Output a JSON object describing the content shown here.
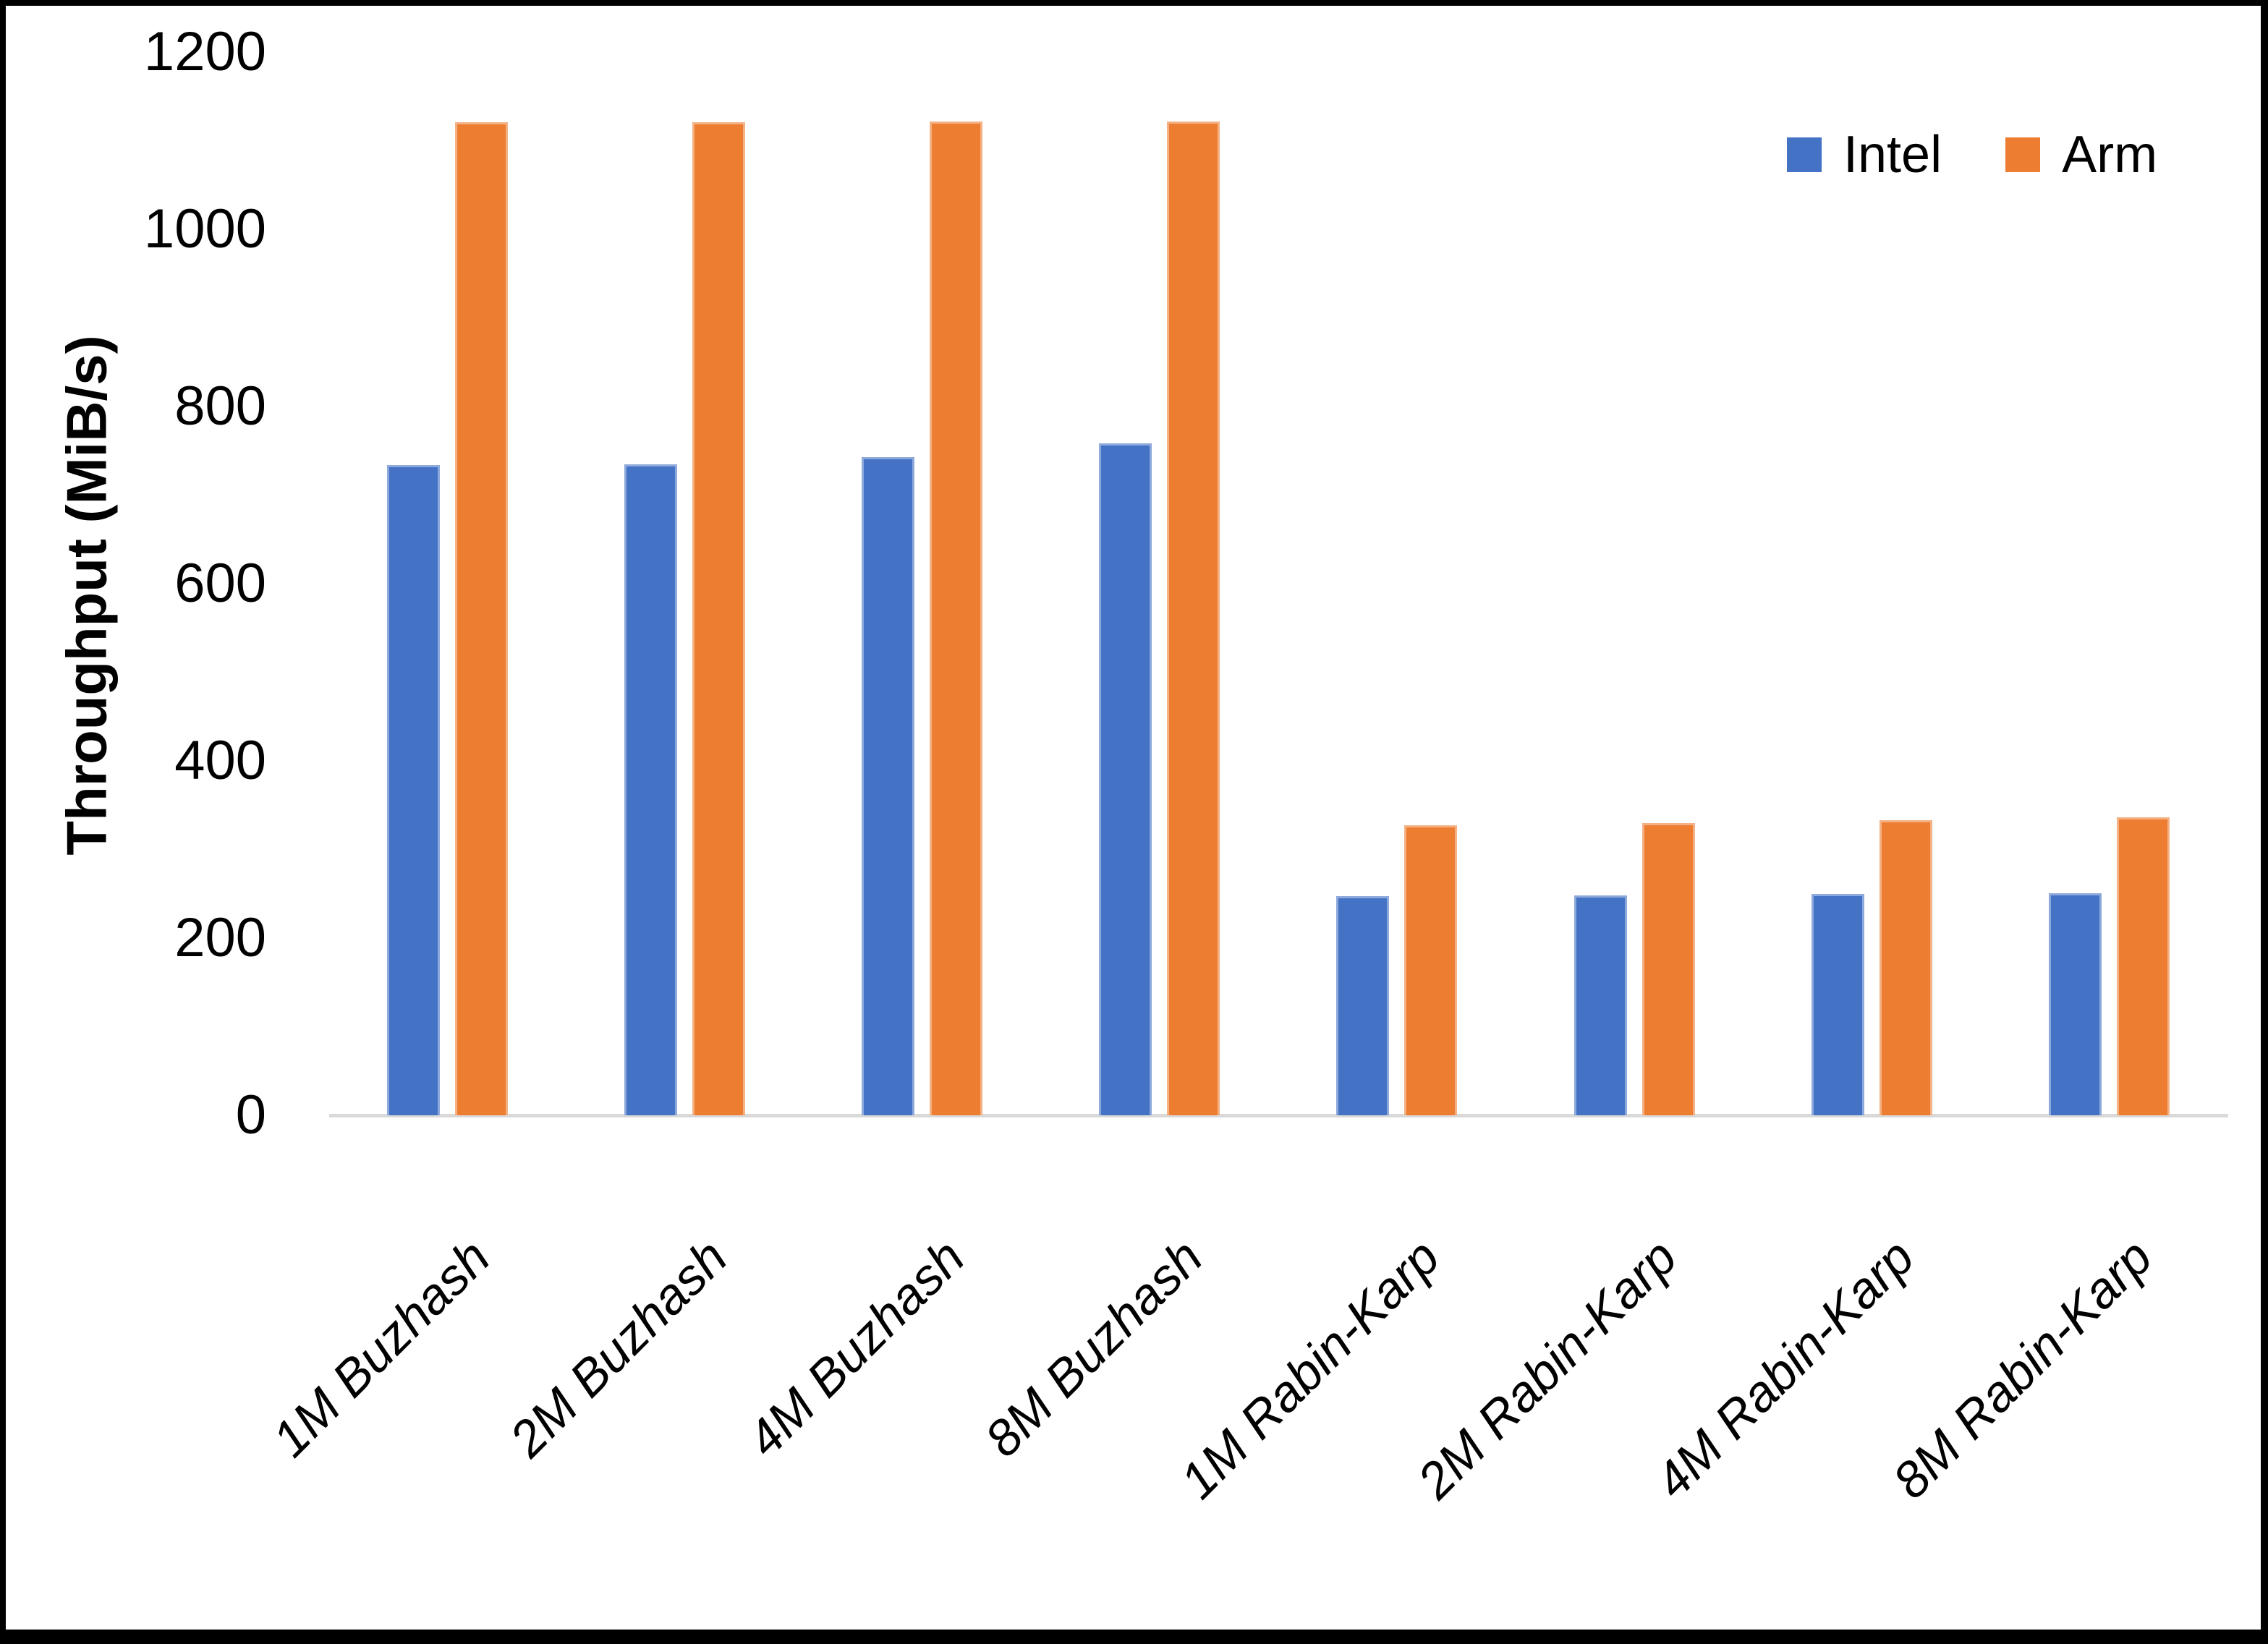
{
  "chart_data": {
    "type": "bar",
    "title": "",
    "xlabel": "",
    "ylabel": "Throughput (MiB/s)",
    "ylim": [
      0,
      1200
    ],
    "ytick_step": 200,
    "ytick_labels": [
      "0",
      "200",
      "400",
      "600",
      "800",
      "1000",
      "1200"
    ],
    "grid": false,
    "legend_position": "top-right",
    "categories": [
      "1M Buzhash",
      "2M Buzhash",
      "4M Buzhash",
      "8M Buzhash",
      "1M Rabin-Karp",
      "2M Rabin-Karp",
      "4M Rabin-Karp",
      "8M Rabin-Karp"
    ],
    "series": [
      {
        "name": "Intel",
        "color": "#4472C4",
        "border_color": "#8EA9DB",
        "values": [
          734,
          735,
          743,
          758,
          247,
          248,
          250,
          251
        ]
      },
      {
        "name": "Arm",
        "color": "#ED7D31",
        "border_color": "#F4B183",
        "values": [
          1121,
          1121,
          1122,
          1122,
          327,
          330,
          333,
          336
        ]
      }
    ],
    "axis_line_color": "#D9D9D9"
  }
}
